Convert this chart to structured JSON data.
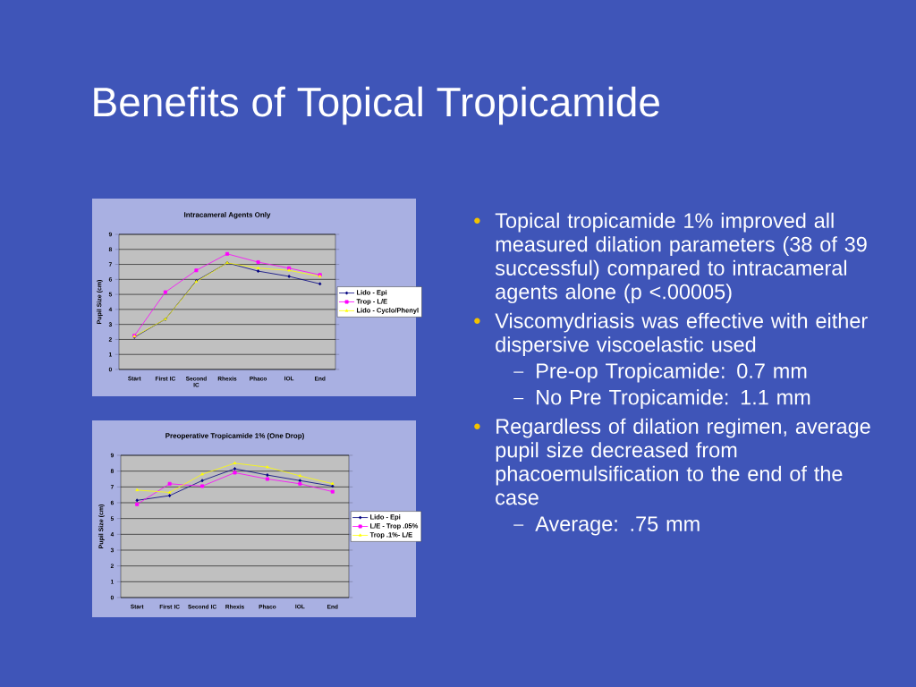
{
  "chart_data": [
    {
      "type": "line",
      "title": "Intracameral Agents Only",
      "ylabel": "Pupil Size (cm)",
      "categories": [
        "Start",
        "First IC",
        "Second IC",
        "Rhexis",
        "Phaco",
        "IOL",
        "End"
      ],
      "series": [
        {
          "name": "Lido - Epi",
          "color": "#000080",
          "marker": "diamond",
          "values": [
            2.15,
            3.35,
            5.9,
            7.1,
            6.55,
            6.2,
            5.7
          ]
        },
        {
          "name": "Trop - L/E",
          "color": "#ff00ff",
          "marker": "square",
          "values": [
            2.25,
            5.15,
            6.6,
            7.7,
            7.15,
            6.75,
            6.3
          ]
        },
        {
          "name": "Lido - Cyclo/Phenyl",
          "color": "#ffff00",
          "marker": "triangle",
          "values": [
            2.2,
            3.35,
            5.85,
            7.1,
            6.75,
            6.6,
            6.2
          ]
        }
      ],
      "ylim": [
        0,
        9
      ],
      "yticks": [
        0,
        1,
        2,
        3,
        4,
        5,
        6,
        7,
        8,
        9
      ],
      "grid": "y",
      "legend": "right"
    },
    {
      "type": "line",
      "title": "Preoperative Tropicamide 1% (One Drop)",
      "ylabel": "Pupil Size (cm)",
      "categories": [
        "Start",
        "First IC",
        "Second IC",
        "Rhexis",
        "Phaco",
        "IOL",
        "End"
      ],
      "series": [
        {
          "name": "Lido - Epi",
          "color": "#000080",
          "marker": "diamond",
          "values": [
            6.15,
            6.45,
            7.4,
            8.15,
            7.75,
            7.4,
            7.05
          ]
        },
        {
          "name": "L/E - Trop .05%",
          "color": "#ff00ff",
          "marker": "square",
          "values": [
            5.9,
            7.2,
            7.05,
            7.9,
            7.5,
            7.2,
            6.7
          ]
        },
        {
          "name": "Trop .1%- L/E",
          "color": "#ffff00",
          "marker": "triangle",
          "values": [
            6.8,
            6.65,
            7.8,
            8.5,
            8.25,
            7.7,
            7.2
          ]
        }
      ],
      "ylim": [
        0,
        9
      ],
      "yticks": [
        0,
        1,
        2,
        3,
        4,
        5,
        6,
        7,
        8,
        9
      ],
      "grid": "y",
      "legend": "right"
    },
    {
      "type": "other",
      "title": "Benefits of Topical Tropicamide",
      "annotations": [
        "Topical tropicamide 1% improved all measured dilation parameters (38 of 39 successful) compared to intracameral agents alone (p <.00005)",
        "Viscomydriasis was effective with either dispersive viscoelastic used",
        "Pre-op Tropicamide:  0.7 mm",
        "No Pre Tropicamide:  1.1 mm",
        "Regardless of dilation regimen, average pupil size decreased from phacoemulsification to the end of the case",
        "Average: .75 mm"
      ]
    }
  ]
}
